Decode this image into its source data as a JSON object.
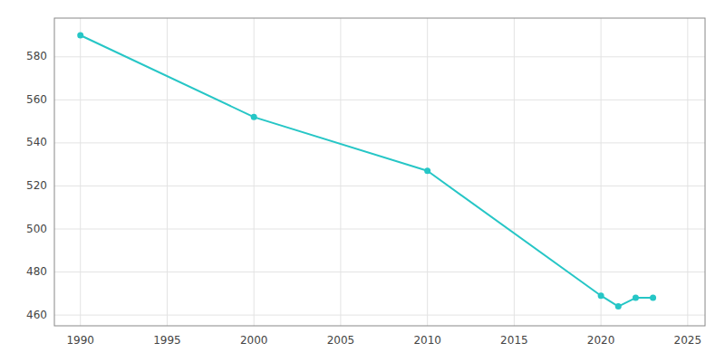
{
  "chart_data": {
    "type": "line",
    "x": [
      1990,
      2000,
      2010,
      2020,
      2021,
      2022,
      2023
    ],
    "values": [
      590,
      552,
      527,
      469,
      464,
      468,
      468
    ],
    "color": "#26C6C6",
    "marker": "circle",
    "line_style": "solid",
    "xlim": [
      1988.5,
      2026
    ],
    "ylim": [
      455,
      598
    ],
    "xticks": [
      1990,
      1995,
      2000,
      2005,
      2010,
      2015,
      2020,
      2025
    ],
    "yticks": [
      460,
      480,
      500,
      520,
      540,
      560,
      580
    ],
    "grid": true
  }
}
